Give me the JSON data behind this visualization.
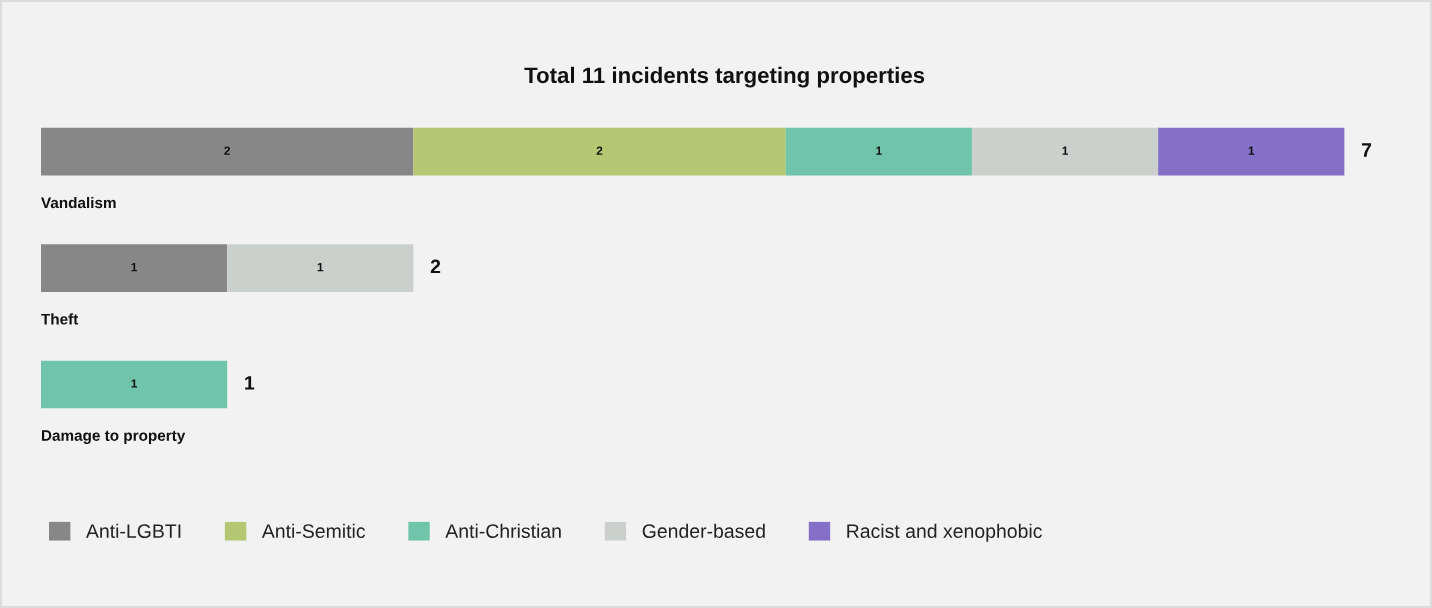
{
  "chart_data": {
    "type": "bar",
    "orientation": "horizontal",
    "stacked": true,
    "title": "Total 11 incidents targeting properties",
    "categories": [
      "Vandalism",
      "Theft",
      "Damage to property"
    ],
    "series": [
      {
        "name": "Anti-LGBTI",
        "color": "#878787",
        "values": [
          2,
          1,
          null
        ]
      },
      {
        "name": "Anti-Semitic",
        "color": "#b5c773",
        "values": [
          2,
          null,
          null
        ]
      },
      {
        "name": "Anti-Christian",
        "color": "#70c4aa",
        "values": [
          1,
          null,
          1
        ]
      },
      {
        "name": "Gender-based",
        "color": "#ccd0cd",
        "values": [
          1,
          1,
          null
        ]
      },
      {
        "name": "Racist and xenophobic",
        "color": "#8470c6",
        "values": [
          1,
          null,
          null
        ]
      }
    ],
    "data_labels": true,
    "totals": [
      "7",
      "2",
      "1"
    ],
    "legend": "bottom"
  }
}
